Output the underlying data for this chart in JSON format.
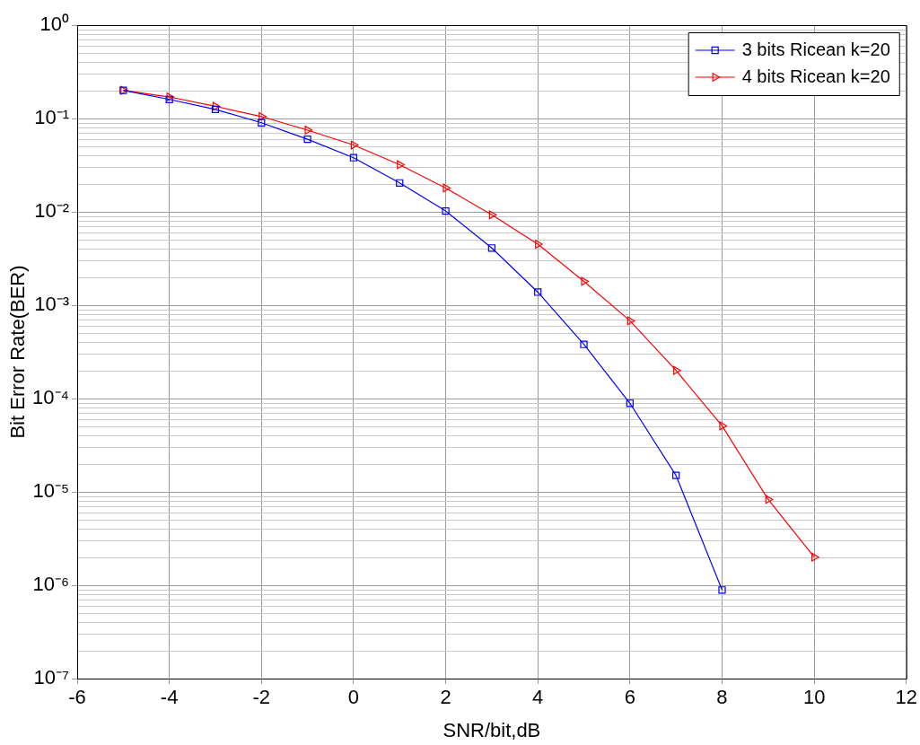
{
  "chart_data": {
    "type": "line",
    "xlabel": "SNR/bit,dB",
    "ylabel": "Bit Error Rate(BER)",
    "log": "y",
    "grid": true,
    "legend": "top right",
    "x": [
      -5,
      -4,
      -3,
      -2,
      -1,
      0,
      1,
      2,
      3,
      4,
      5,
      6,
      7,
      8,
      9,
      10
    ],
    "xlim": [
      -6,
      12
    ],
    "xticks": [
      -6,
      -4,
      -2,
      0,
      2,
      4,
      6,
      8,
      10,
      12
    ],
    "ylim": [
      1e-07,
      1
    ],
    "yticks": [
      {
        "value": 1e-07,
        "label": "10⁻⁷"
      },
      {
        "value": 1e-06,
        "label": "10⁻⁶"
      },
      {
        "value": 1e-05,
        "label": "10⁻⁵"
      },
      {
        "value": 0.0001,
        "label": "10⁻⁴"
      },
      {
        "value": 0.001,
        "label": "10⁻³"
      },
      {
        "value": 0.01,
        "label": "10⁻²"
      },
      {
        "value": 0.1,
        "label": "10⁻¹"
      },
      {
        "value": 1,
        "label": "10⁰"
      }
    ],
    "series": [
      {
        "name": "3 bits Ricean k=20",
        "color": "#0000ff",
        "marker": "square",
        "values": [
          0.2,
          0.16,
          0.125,
          0.09,
          0.06,
          0.038,
          0.0204,
          0.0102,
          0.0041,
          0.00138,
          0.00038,
          8.9e-05,
          1.5e-05,
          8.9e-07,
          null,
          null
        ]
      },
      {
        "name": "4 bits Ricean k=20",
        "color": "#ff0000",
        "marker": "triangle",
        "values": [
          0.2,
          0.17,
          0.135,
          0.105,
          0.075,
          0.052,
          0.032,
          0.018,
          0.0093,
          0.0045,
          0.0018,
          0.00068,
          0.0002,
          5.1e-05,
          8.3e-06,
          2e-06
        ]
      }
    ]
  }
}
